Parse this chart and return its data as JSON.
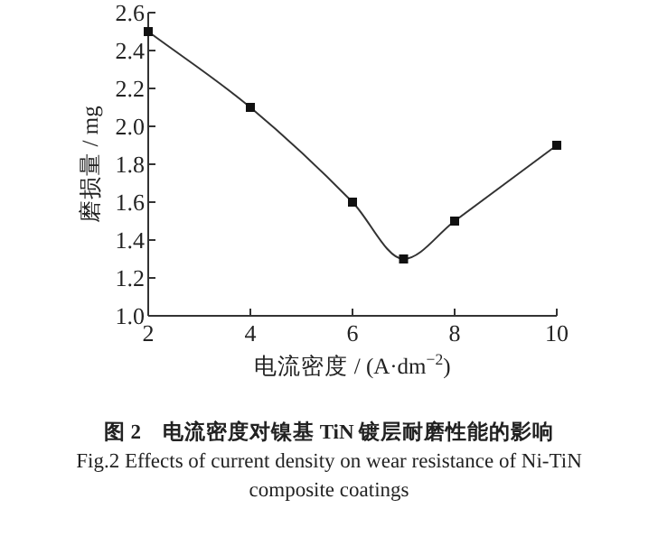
{
  "chart_data": {
    "type": "line",
    "title": "图 2　电流密度对镍基 TiN 镀层耐磨性能的影响",
    "subtitle": "Fig.2 Effects of current density on wear resistance of Ni-TiN composite coatings",
    "xlabel": "电流密度 / (A·dm$^{−2}$)",
    "ylabel": "磨损量 / mg",
    "x": [
      2,
      4,
      6,
      7,
      8,
      10
    ],
    "series": [
      {
        "color": "#333333",
        "values": [
          2.5,
          2.1,
          1.6,
          1.3,
          1.5,
          1.9
        ]
      }
    ],
    "xlim": [
      2,
      10
    ],
    "xticks": [
      2,
      4,
      6,
      8,
      10
    ],
    "ylim": [
      1.0,
      2.6
    ],
    "yticks": [
      {
        "value": 1.0,
        "label": "1.0"
      },
      1.2,
      1.4,
      1.6,
      1.8,
      {
        "value": 2.0,
        "label": "2.0"
      },
      2.2,
      2.4,
      2.6
    ],
    "marker": "square",
    "line_style": "solid"
  }
}
